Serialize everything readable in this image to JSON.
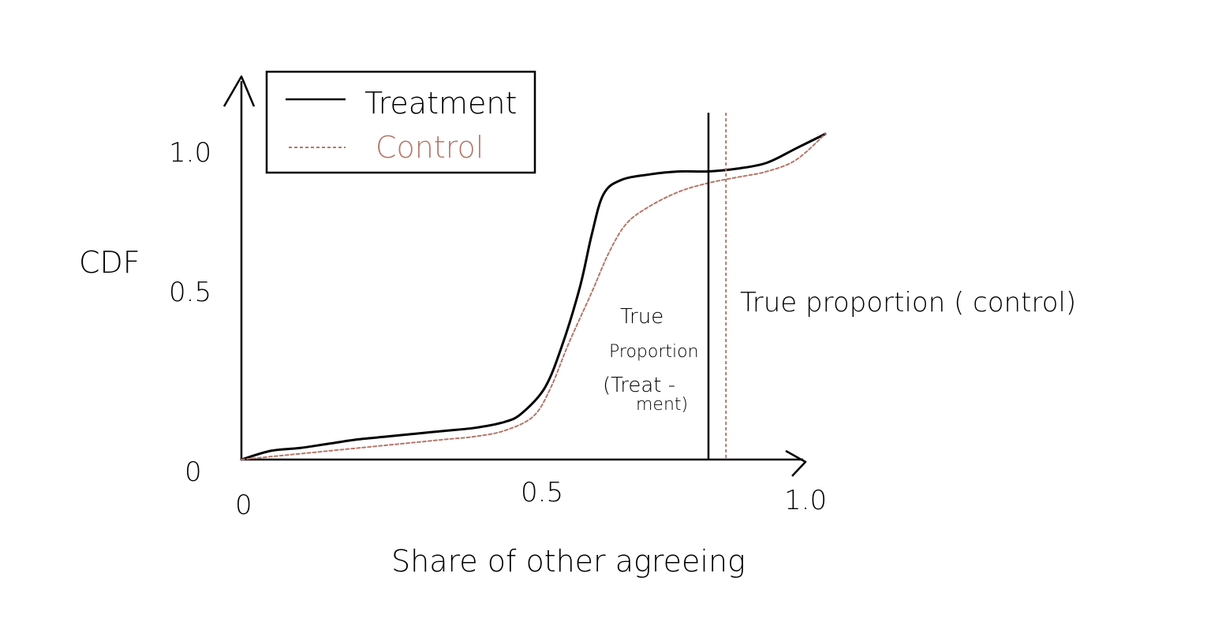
{
  "chart_data": {
    "type": "line",
    "title": "",
    "xlabel": "Share of other agreeing",
    "ylabel": "CDF",
    "xlim": [
      0,
      1.0
    ],
    "ylim": [
      0,
      1.25
    ],
    "x_ticks": [
      {
        "value": 0,
        "label": "0"
      },
      {
        "value": 0.5,
        "label": "0.5"
      },
      {
        "value": 1.0,
        "label": "1.0"
      }
    ],
    "y_ticks": [
      {
        "value": 0,
        "label": "0"
      },
      {
        "value": 0.5,
        "label": "0.5"
      },
      {
        "value": 1.0,
        "label": "1.0"
      }
    ],
    "grid": false,
    "legend_position": "top-left",
    "colors": {
      "treatment": "#000000",
      "control": "#b5776a"
    },
    "series": [
      {
        "name": "Treatment",
        "style": "solid",
        "color": "#000000",
        "x": [
          0.0,
          0.05,
          0.1,
          0.15,
          0.2,
          0.25,
          0.3,
          0.35,
          0.4,
          0.45,
          0.48,
          0.52,
          0.55,
          0.58,
          0.6,
          0.62,
          0.65,
          0.7,
          0.75,
          0.8,
          0.85,
          0.9,
          0.95,
          1.0
        ],
        "values": [
          0.0,
          0.03,
          0.04,
          0.055,
          0.07,
          0.08,
          0.09,
          0.1,
          0.11,
          0.13,
          0.16,
          0.25,
          0.4,
          0.6,
          0.78,
          0.92,
          0.97,
          0.99,
          1.0,
          1.0,
          1.01,
          1.03,
          1.08,
          1.13
        ]
      },
      {
        "name": "Control",
        "style": "dashed",
        "color": "#b5776a",
        "x": [
          0.0,
          0.05,
          0.1,
          0.15,
          0.2,
          0.25,
          0.3,
          0.35,
          0.4,
          0.45,
          0.5,
          0.53,
          0.56,
          0.6,
          0.63,
          0.66,
          0.7,
          0.75,
          0.8,
          0.85,
          0.9,
          0.95,
          1.0
        ],
        "values": [
          0.0,
          0.01,
          0.02,
          0.03,
          0.04,
          0.05,
          0.06,
          0.07,
          0.08,
          0.1,
          0.15,
          0.25,
          0.4,
          0.58,
          0.72,
          0.82,
          0.88,
          0.93,
          0.96,
          0.98,
          1.0,
          1.04,
          1.13
        ]
      }
    ],
    "vertical_lines": [
      {
        "x": 0.8,
        "style": "solid",
        "color": "#000000"
      },
      {
        "x": 0.83,
        "style": "dashed",
        "color": "#b5776a"
      }
    ],
    "annotations": [
      {
        "lines": [
          "True",
          "Proportion",
          "(Treat -",
          "ment)"
        ]
      },
      {
        "lines": [
          "True proportion ( control)"
        ]
      }
    ]
  }
}
